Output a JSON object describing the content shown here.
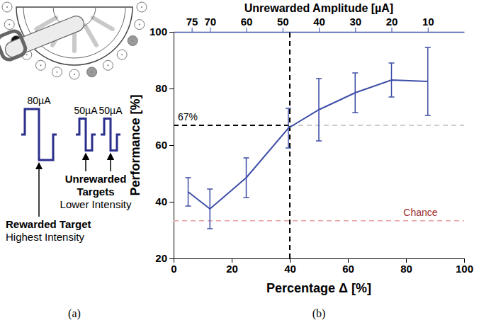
{
  "chart_data": {
    "type": "line",
    "panel_label": "(b)",
    "xlabel": "Percentage Δ [%]",
    "ylabel": "Performance [%]",
    "x2label": "Unrewarded Amplitude [µA]",
    "x": [
      5,
      12.5,
      25,
      39.5,
      50,
      62.5,
      75,
      87.5
    ],
    "series": [
      {
        "color": "#3f4fa8",
        "values": [
          43.5,
          37.5,
          48.5,
          66,
          72.5,
          78.5,
          83,
          82.5
        ],
        "errors": [
          5,
          7,
          7,
          7,
          11,
          7,
          6,
          12
        ]
      }
    ],
    "xlim": [
      0,
      100
    ],
    "xticks": [
      0,
      20,
      40,
      60,
      80,
      100
    ],
    "ylim": [
      20,
      100
    ],
    "yticks": [
      20,
      40,
      60,
      80,
      100
    ],
    "x2lim": [
      80,
      0
    ],
    "x2ticks": [
      75,
      70,
      60,
      50,
      40,
      30,
      20,
      10
    ],
    "reference_lines": [
      {
        "x": 40,
        "color": "#000000"
      },
      {
        "y": 67,
        "label": "67%",
        "color": "#000000"
      },
      {
        "y": 33.3,
        "label": "Chance",
        "color": "#e8a0a0"
      }
    ]
  },
  "diagram": {
    "label": "(a)",
    "pulses": [
      {
        "text": "80µA",
        "amplitude": 80
      },
      {
        "text": "50µA",
        "amplitude": 50
      },
      {
        "text": "50µA",
        "amplitude": 50
      }
    ],
    "targets": [
      {
        "title": "Rewarded Target",
        "subtitle": "Highest Intensity"
      },
      {
        "title": "Unrewarded Targets",
        "subtitle": "Lower Intensity"
      }
    ]
  }
}
